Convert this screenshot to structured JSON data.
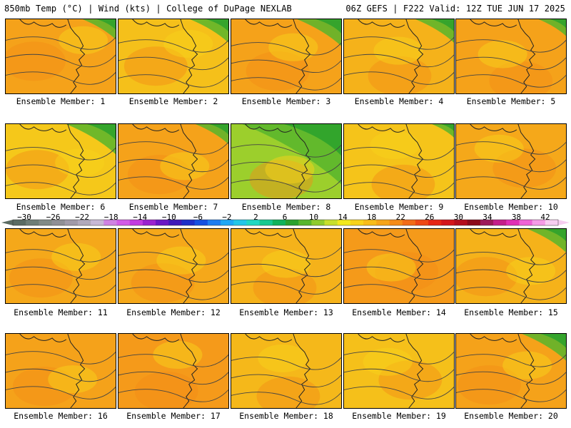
{
  "header": {
    "left": "850mb Temp (°C) | Wind (kts) | College of DuPage NEXLAB",
    "right": "06Z GEFS | F222 Valid: 12Z TUE JUN 17 2025"
  },
  "panels": [
    {
      "label": "Ensemble Member: 1",
      "base": "#f5a21a",
      "greenNE": 0.3
    },
    {
      "label": "Ensemble Member: 2",
      "base": "#f5c01a",
      "greenNE": 0.35
    },
    {
      "label": "Ensemble Member: 3",
      "base": "#f5a21a",
      "greenNE": 0.4
    },
    {
      "label": "Ensemble Member: 4",
      "base": "#f5b21a",
      "greenNE": 0.35
    },
    {
      "label": "Ensemble Member: 5",
      "base": "#f5a21a",
      "greenNE": 0.25
    },
    {
      "label": "Ensemble Member: 6",
      "base": "#f5c81a",
      "greenNE": 0.45
    },
    {
      "label": "Ensemble Member: 7",
      "base": "#f5a21a",
      "greenNE": 0.3
    },
    {
      "label": "Ensemble Member: 8",
      "base": "#9ccf2c",
      "greenNE": 0.9
    },
    {
      "label": "Ensemble Member: 9",
      "base": "#f5c41a",
      "greenNE": 0.2
    },
    {
      "label": "Ensemble Member: 10",
      "base": "#f5a81a",
      "greenNE": 0.0
    },
    {
      "label": "Ensemble Member: 11",
      "base": "#f5a81a",
      "greenNE": 0.0
    },
    {
      "label": "Ensemble Member: 12",
      "base": "#f5a81a",
      "greenNE": 0.0
    },
    {
      "label": "Ensemble Member: 13",
      "base": "#f5b21a",
      "greenNE": 0.0
    },
    {
      "label": "Ensemble Member: 14",
      "base": "#f59a1a",
      "greenNE": 0.0
    },
    {
      "label": "Ensemble Member: 15",
      "base": "#f5b21a",
      "greenNE": 0.35
    },
    {
      "label": "Ensemble Member: 16",
      "base": "#f5a21a",
      "greenNE": 0.0
    },
    {
      "label": "Ensemble Member: 17",
      "base": "#f59a1a",
      "greenNE": 0.0
    },
    {
      "label": "Ensemble Member: 18",
      "base": "#f5b81a",
      "greenNE": 0.0
    },
    {
      "label": "Ensemble Member: 19",
      "base": "#f5c01a",
      "greenNE": 0.0
    },
    {
      "label": "Ensemble Member: 20",
      "base": "#f5a21a",
      "greenNE": 0.4
    }
  ],
  "colorbar": {
    "labels": [
      "-30",
      "-26",
      "-22",
      "-18",
      "-14",
      "-10",
      "-6",
      "-2",
      "2",
      "6",
      "10",
      "14",
      "18",
      "22",
      "26",
      "30",
      "34",
      "38",
      "42"
    ],
    "colors": [
      "#5a6b63",
      "#6d7d76",
      "#808a86",
      "#8f8f95",
      "#a09aa8",
      "#b0a9ba",
      "#c7b8d6",
      "#cf82e3",
      "#d25be6",
      "#c23be0",
      "#9a22cf",
      "#6a16c4",
      "#3f1ab8",
      "#1d2fc8",
      "#1550e0",
      "#1e7cf0",
      "#1fa7f5",
      "#22c6e8",
      "#1fd8c2",
      "#15c98f",
      "#10b25a",
      "#2aa12d",
      "#58b52d",
      "#8fcb2e",
      "#c7df2c",
      "#f2e91d",
      "#f8d21a",
      "#f7bc19",
      "#f6a418",
      "#f58b17",
      "#f26b16",
      "#ee4815",
      "#e62514",
      "#d3141b",
      "#b40d1c",
      "#8b0a1a",
      "#9c1a5a",
      "#c41f8a",
      "#e02fb5",
      "#ef62d5",
      "#f59be6",
      "#f7cdf1"
    ]
  }
}
